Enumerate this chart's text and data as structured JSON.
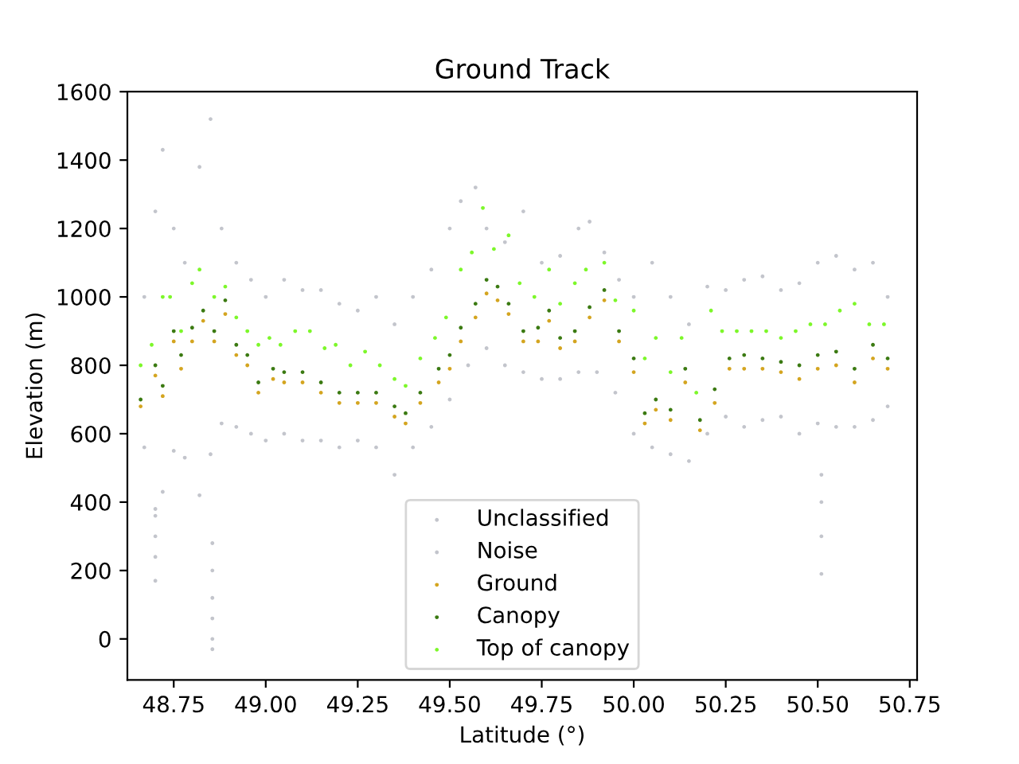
{
  "chart_data": {
    "type": "scatter",
    "title": "Ground Track",
    "xlabel": "Latitude (°)",
    "ylabel": "Elevation (m)",
    "xlim": [
      48.624,
      50.77
    ],
    "ylim": [
      -120,
      1600
    ],
    "xticks": [
      48.75,
      {
        "value": 49.0,
        "label": "49.00"
      },
      49.25,
      {
        "value": 49.5,
        "label": "49.50"
      },
      49.75,
      {
        "value": 50.0,
        "label": "50.00"
      },
      50.25,
      {
        "value": 50.5,
        "label": "50.50"
      },
      50.75
    ],
    "yticks": [
      0,
      200,
      400,
      600,
      800,
      1000,
      1200,
      1400,
      1600
    ],
    "grid": false,
    "legend": "bottom",
    "marker": "circle",
    "series": [
      {
        "name": "Unclassified",
        "color": "#c3c5cc",
        "x": [
          48.67,
          48.7,
          48.72,
          48.75,
          48.78,
          48.82,
          48.85,
          48.88,
          48.92,
          48.96,
          49.0,
          49.05,
          49.1,
          49.15,
          49.2,
          49.25,
          49.3,
          49.35,
          49.4,
          49.45,
          49.5,
          49.53,
          49.57,
          49.6,
          49.65,
          49.7,
          49.75,
          49.8,
          49.85,
          49.88,
          49.92,
          49.96,
          50.0,
          50.05,
          50.1,
          50.15,
          50.2,
          50.25,
          50.3,
          50.35,
          50.4,
          50.45,
          50.5,
          50.55,
          50.6,
          50.65,
          50.69,
          48.67,
          48.7,
          48.72,
          48.75,
          48.78,
          48.82,
          48.85,
          48.88,
          48.92,
          48.96,
          49.0,
          49.05,
          49.1,
          49.15,
          49.2,
          49.25,
          49.3,
          49.35,
          49.4,
          49.45,
          49.5,
          49.55,
          49.6,
          49.65,
          49.7,
          49.75,
          49.8,
          49.85,
          49.9,
          49.95,
          50.0,
          50.05,
          50.1,
          50.15,
          50.2,
          50.25,
          50.3,
          50.35,
          50.4,
          50.45,
          50.5,
          50.55,
          50.6,
          50.65,
          50.69
        ],
        "values": [
          1000,
          1250,
          1430,
          1200,
          1100,
          1380,
          1520,
          1200,
          1100,
          1050,
          1000,
          1050,
          1020,
          1020,
          980,
          960,
          1000,
          920,
          1000,
          1080,
          1200,
          1280,
          1320,
          1200,
          1160,
          1250,
          1100,
          1120,
          1200,
          1220,
          1130,
          1050,
          1000,
          1100,
          1000,
          920,
          1030,
          1020,
          1050,
          1060,
          1020,
          1040,
          1100,
          1120,
          1080,
          1100,
          1000,
          560,
          380,
          430,
          550,
          530,
          420,
          540,
          630,
          620,
          600,
          580,
          600,
          580,
          580,
          560,
          580,
          560,
          480,
          560,
          620,
          700,
          800,
          850,
          800,
          780,
          760,
          760,
          780,
          780,
          720,
          600,
          560,
          540,
          520,
          600,
          650,
          620,
          640,
          650,
          600,
          630,
          620,
          620,
          640,
          680
        ]
      },
      {
        "name": "Noise",
        "color": "#c3c5cc",
        "x": [
          48.7,
          48.7,
          48.7,
          48.7,
          48.855,
          48.855,
          48.855,
          48.855,
          48.855,
          48.855,
          50.51,
          50.51,
          50.51,
          50.51
        ],
        "values": [
          360,
          300,
          240,
          170,
          280,
          200,
          120,
          60,
          0,
          -30,
          480,
          400,
          300,
          190
        ]
      },
      {
        "name": "Ground",
        "color": "#d4a520",
        "x": [
          48.66,
          48.7,
          48.72,
          48.75,
          48.77,
          48.8,
          48.83,
          48.86,
          48.89,
          48.92,
          48.95,
          48.98,
          49.02,
          49.05,
          49.1,
          49.15,
          49.2,
          49.25,
          49.3,
          49.35,
          49.38,
          49.42,
          49.47,
          49.5,
          49.53,
          49.57,
          49.6,
          49.63,
          49.66,
          49.7,
          49.74,
          49.77,
          49.8,
          49.84,
          49.88,
          49.92,
          49.96,
          50.0,
          50.03,
          50.06,
          50.1,
          50.14,
          50.18,
          50.22,
          50.26,
          50.3,
          50.35,
          50.4,
          50.45,
          50.5,
          50.55,
          50.6,
          50.65,
          50.69
        ],
        "values": [
          680,
          770,
          710,
          870,
          790,
          870,
          930,
          870,
          950,
          830,
          800,
          720,
          760,
          750,
          750,
          720,
          690,
          690,
          690,
          650,
          630,
          690,
          750,
          790,
          870,
          940,
          1010,
          990,
          950,
          870,
          870,
          930,
          850,
          870,
          940,
          990,
          870,
          780,
          630,
          670,
          640,
          750,
          610,
          690,
          790,
          790,
          790,
          780,
          760,
          790,
          800,
          750,
          820,
          790
        ]
      },
      {
        "name": "Canopy",
        "color": "#3b7a12",
        "x": [
          48.66,
          48.7,
          48.72,
          48.75,
          48.77,
          48.8,
          48.83,
          48.86,
          48.89,
          48.92,
          48.95,
          48.98,
          49.02,
          49.05,
          49.1,
          49.15,
          49.2,
          49.25,
          49.3,
          49.35,
          49.38,
          49.42,
          49.47,
          49.5,
          49.53,
          49.57,
          49.6,
          49.63,
          49.66,
          49.7,
          49.74,
          49.77,
          49.8,
          49.84,
          49.88,
          49.92,
          49.96,
          50.0,
          50.03,
          50.06,
          50.1,
          50.14,
          50.18,
          50.22,
          50.26,
          50.3,
          50.35,
          50.4,
          50.45,
          50.5,
          50.55,
          50.6,
          50.65,
          50.69
        ],
        "values": [
          700,
          800,
          740,
          900,
          830,
          910,
          960,
          900,
          990,
          860,
          830,
          750,
          790,
          780,
          780,
          750,
          720,
          720,
          720,
          680,
          660,
          720,
          790,
          830,
          910,
          980,
          1050,
          1030,
          980,
          900,
          910,
          960,
          880,
          900,
          970,
          1020,
          900,
          820,
          660,
          700,
          670,
          790,
          640,
          730,
          820,
          830,
          820,
          810,
          800,
          830,
          840,
          790,
          860,
          820
        ]
      },
      {
        "name": "Top of canopy",
        "color": "#7df72a",
        "x": [
          48.66,
          48.69,
          48.72,
          48.74,
          48.77,
          48.8,
          48.82,
          48.86,
          48.89,
          48.92,
          48.95,
          48.98,
          49.01,
          49.04,
          49.08,
          49.12,
          49.16,
          49.19,
          49.23,
          49.27,
          49.31,
          49.35,
          49.38,
          49.42,
          49.46,
          49.49,
          49.53,
          49.56,
          49.59,
          49.62,
          49.66,
          49.69,
          49.73,
          49.77,
          49.8,
          49.84,
          49.87,
          49.92,
          49.95,
          50.0,
          50.03,
          50.06,
          50.1,
          50.13,
          50.17,
          50.21,
          50.24,
          50.28,
          50.32,
          50.36,
          50.4,
          50.44,
          50.48,
          50.52,
          50.56,
          50.6,
          50.64,
          50.68
        ],
        "values": [
          800,
          860,
          1000,
          1000,
          900,
          1040,
          1080,
          1000,
          1030,
          940,
          900,
          860,
          880,
          860,
          900,
          900,
          850,
          860,
          800,
          840,
          800,
          760,
          740,
          820,
          880,
          940,
          1080,
          1130,
          1260,
          1140,
          1180,
          1040,
          1000,
          1080,
          980,
          1040,
          1080,
          1100,
          990,
          960,
          820,
          880,
          780,
          880,
          720,
          960,
          900,
          900,
          900,
          900,
          880,
          900,
          920,
          920,
          960,
          980,
          920,
          920
        ]
      }
    ]
  }
}
